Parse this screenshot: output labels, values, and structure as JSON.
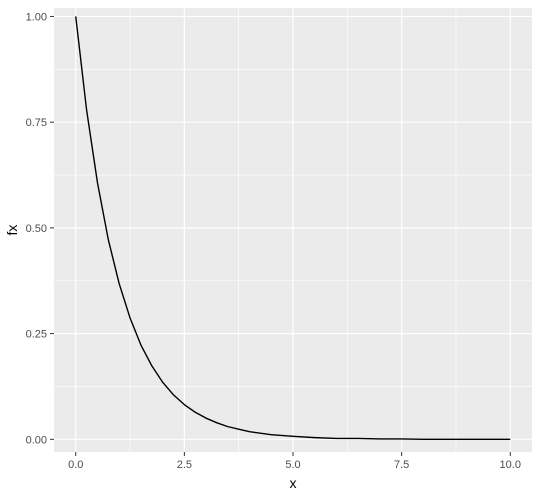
{
  "chart_data": {
    "type": "line",
    "xlabel": "x",
    "ylabel": "fx",
    "xlim": [
      -0.5,
      10.5
    ],
    "ylim": [
      -0.03,
      1.02
    ],
    "x_ticks": [
      0.0,
      2.5,
      5.0,
      7.5,
      10.0
    ],
    "x_tick_labels": [
      "0.0",
      "2.5",
      "5.0",
      "7.5",
      "10.0"
    ],
    "y_ticks": [
      0.0,
      0.25,
      0.5,
      0.75,
      1.0
    ],
    "y_tick_labels": [
      "0.00",
      "0.25",
      "0.50",
      "0.75",
      "1.00"
    ],
    "x_minor_ticks": [
      1.25,
      3.75,
      6.25,
      8.75
    ],
    "y_minor_ticks": [
      0.125,
      0.375,
      0.625,
      0.875
    ],
    "grid": true,
    "panel_background": "#ebebeb",
    "grid_color": "#ffffff",
    "line_color": "#000000",
    "series": [
      {
        "x": [
          0.0,
          0.25,
          0.5,
          0.75,
          1.0,
          1.25,
          1.5,
          1.75,
          2.0,
          2.25,
          2.5,
          2.75,
          3.0,
          3.25,
          3.5,
          3.75,
          4.0,
          4.5,
          5.0,
          5.5,
          6.0,
          6.5,
          7.0,
          7.5,
          8.0,
          8.5,
          9.0,
          9.5,
          10.0
        ],
        "values": [
          1.0,
          0.779,
          0.607,
          0.472,
          0.368,
          0.287,
          0.223,
          0.174,
          0.135,
          0.105,
          0.082,
          0.064,
          0.05,
          0.039,
          0.03,
          0.024,
          0.018,
          0.011,
          0.007,
          0.004,
          0.002,
          0.002,
          0.001,
          0.001,
          0.0,
          0.0,
          0.0,
          0.0,
          0.0
        ]
      }
    ]
  }
}
